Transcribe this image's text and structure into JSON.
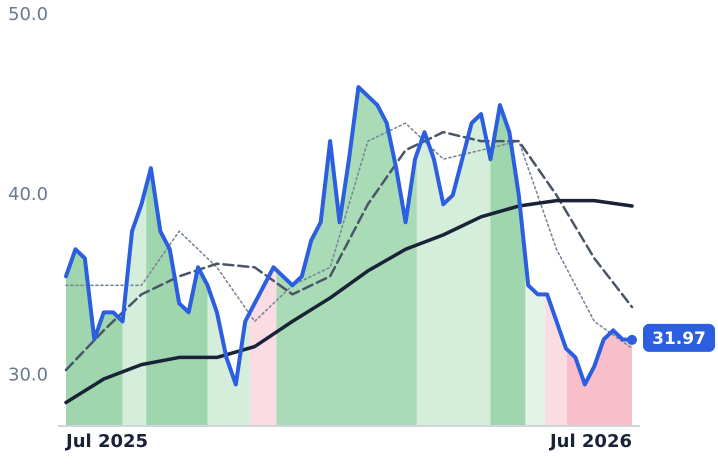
{
  "chart_data": {
    "type": "line",
    "xlim": [
      0,
      60
    ],
    "xticks": [
      {
        "value": 0,
        "label": "Jul 2025"
      },
      {
        "value": 60,
        "label": "Jul 2026"
      }
    ],
    "ylim": [
      27.25,
      50
    ],
    "yticks": [
      {
        "value": 30,
        "label": "30.0"
      },
      {
        "value": 40,
        "label": "40.0"
      },
      {
        "value": 50,
        "label": "50.0"
      }
    ],
    "grid": false,
    "regions": [
      {
        "start": 0,
        "end": 6,
        "color": "#9fd6ad"
      },
      {
        "start": 6,
        "end": 8.5,
        "color": "#d4eedb"
      },
      {
        "start": 8.5,
        "end": 15,
        "color": "#9fd6ad"
      },
      {
        "start": 15,
        "end": 19.5,
        "color": "#d4eedb"
      },
      {
        "start": 19.5,
        "end": 22.3,
        "color": "#fbdce2"
      },
      {
        "start": 22.3,
        "end": 37.2,
        "color": "#a9dcb6"
      },
      {
        "start": 37.2,
        "end": 45,
        "color": "#d4eedb"
      },
      {
        "start": 45,
        "end": 48.7,
        "color": "#9fd6ad"
      },
      {
        "start": 48.7,
        "end": 50.8,
        "color": "#e3f4e7"
      },
      {
        "start": 50.8,
        "end": 53.1,
        "color": "#fbdce2"
      },
      {
        "start": 53.1,
        "end": 60,
        "color": "#f8bfca"
      }
    ],
    "series": [
      {
        "color": "#7a8699",
        "style": "dotted",
        "width": 1.6,
        "x": [
          0,
          4,
          8,
          12,
          16,
          20,
          24,
          28,
          32,
          36,
          40,
          44,
          48,
          52,
          56,
          60
        ],
        "values": [
          35,
          35,
          35,
          38,
          36,
          33,
          35,
          36,
          43,
          44,
          42,
          42.5,
          43,
          37,
          33,
          31.5
        ]
      },
      {
        "color": "#4a5568",
        "style": "dashed",
        "width": 2.5,
        "x": [
          0,
          4,
          8,
          12,
          16,
          20,
          24,
          28,
          32,
          36,
          40,
          44,
          48,
          52,
          56,
          60
        ],
        "values": [
          30.3,
          32.5,
          34.5,
          35.5,
          36.2,
          36,
          34.5,
          35.5,
          39.5,
          42.5,
          43.5,
          43,
          43,
          40,
          36.5,
          33.8
        ]
      },
      {
        "color": "#1a2238",
        "style": "solid",
        "width": 3.5,
        "x": [
          0,
          4,
          8,
          12,
          16,
          20,
          24,
          28,
          32,
          36,
          40,
          44,
          48,
          52,
          56,
          60
        ],
        "values": [
          28.5,
          29.8,
          30.6,
          31,
          31,
          31.6,
          33,
          34.3,
          35.8,
          37,
          37.8,
          38.8,
          39.4,
          39.7,
          39.7,
          39.4
        ]
      },
      {
        "color": "#2b5fe0",
        "style": "solid",
        "width": 4,
        "x": [
          0,
          1,
          2,
          3,
          4,
          5,
          6,
          7,
          8,
          9,
          10,
          11,
          12,
          13,
          14,
          15,
          16,
          17,
          18,
          19,
          20,
          21,
          22,
          23,
          24,
          25,
          26,
          27,
          28,
          29,
          30,
          31,
          32,
          33,
          34,
          35,
          36,
          37,
          38,
          39,
          40,
          41,
          42,
          43,
          44,
          45,
          46,
          47,
          48,
          49,
          50,
          51,
          52,
          53,
          54,
          55,
          56,
          57,
          58,
          59,
          60
        ],
        "values": [
          35.5,
          37,
          36.5,
          32,
          33.5,
          33.5,
          33,
          38,
          39.5,
          41.5,
          38,
          37,
          34,
          33.5,
          36,
          35,
          33.5,
          31,
          29.5,
          33,
          34,
          35,
          36,
          35.5,
          35,
          35.5,
          37.5,
          38.5,
          43,
          38.5,
          42,
          46,
          45.5,
          45,
          44,
          41.5,
          38.5,
          42,
          43.5,
          42,
          39.5,
          40,
          42,
          44,
          44.5,
          42,
          45,
          43.5,
          40,
          35,
          34.5,
          34.5,
          33,
          31.5,
          31,
          29.5,
          30.5,
          32,
          32.5,
          32,
          31.97
        ]
      }
    ]
  }
}
